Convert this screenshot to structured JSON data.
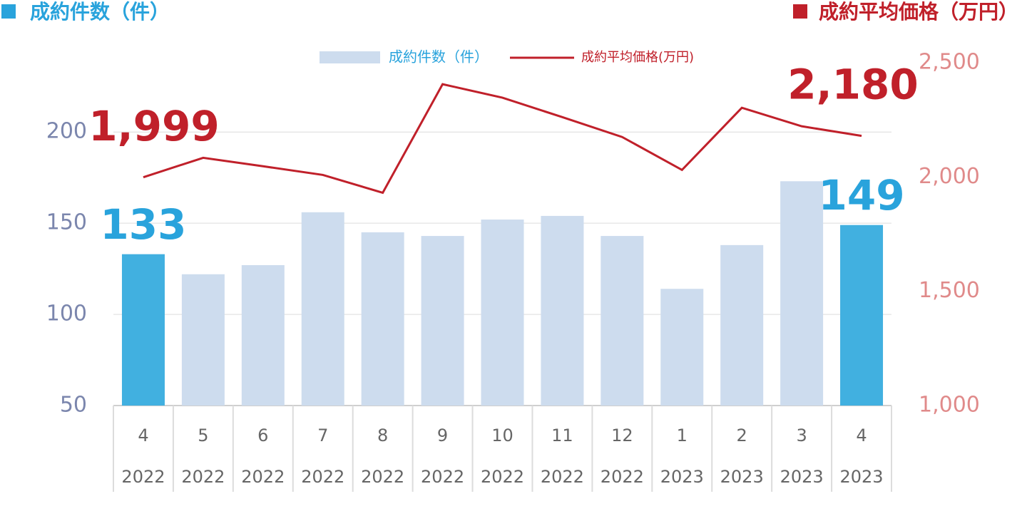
{
  "chart_data": {
    "type": "bar-line",
    "ylabel": "成約件数（件）",
    "y2label": "成約平均価格（万円）",
    "categories": [
      "4",
      "5",
      "6",
      "7",
      "8",
      "9",
      "10",
      "11",
      "12",
      "1",
      "2",
      "3",
      "4"
    ],
    "years": [
      "2022",
      "2022",
      "2022",
      "2022",
      "2022",
      "2022",
      "2022",
      "2022",
      "2022",
      "2023",
      "2023",
      "2023",
      "2023"
    ],
    "series": [
      {
        "name": "成約件数（件）",
        "type": "bar",
        "color": "#cddcee",
        "bar_colors": [
          "#41b0e0",
          "#cddcee",
          "#cddcee",
          "#cddcee",
          "#cddcee",
          "#cddcee",
          "#cddcee",
          "#cddcee",
          "#cddcee",
          "#cddcee",
          "#cddcee",
          "#cddcee",
          "#41b0e0"
        ],
        "values": [
          133,
          122,
          127,
          156,
          145,
          143,
          152,
          154,
          143,
          114,
          138,
          173,
          149
        ],
        "value_labels": [
          "133",
          null,
          null,
          null,
          null,
          null,
          null,
          null,
          null,
          null,
          null,
          null,
          "149"
        ]
      },
      {
        "name": "成約平均価格(万円)",
        "type": "line",
        "axis": "y2",
        "color": "#c0202a",
        "values": [
          1999,
          2084,
          2047,
          2009,
          1931,
          2406,
          2347,
          2262,
          2175,
          2031,
          2303,
          2222,
          2180
        ],
        "value_labels": [
          "1,999",
          null,
          null,
          null,
          null,
          null,
          null,
          null,
          null,
          null,
          null,
          null,
          "2,180"
        ]
      }
    ],
    "ylim": [
      50,
      238
    ],
    "yticks": [
      50,
      100,
      150,
      200
    ],
    "y2lim": [
      1000,
      2500
    ],
    "y2ticks": [
      {
        "value": 1000,
        "label": "1,000"
      },
      {
        "value": 1500,
        "label": "1,500"
      },
      {
        "value": 2000,
        "label": "2,000"
      },
      {
        "value": 2500,
        "label": "2,500"
      }
    ],
    "grid": true
  }
}
